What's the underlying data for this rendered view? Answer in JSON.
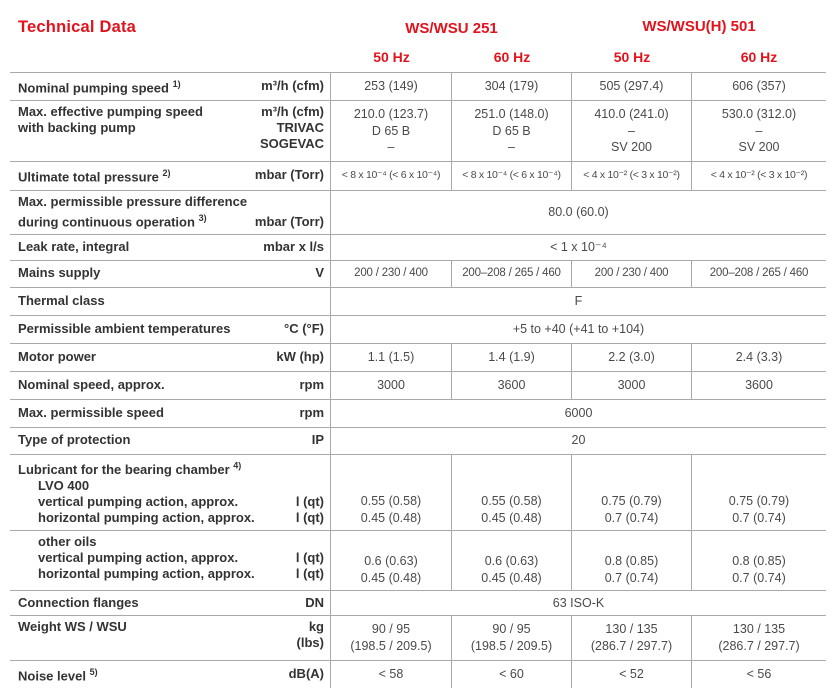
{
  "title": "Technical Data",
  "colors": {
    "accent_red": "#e2131c",
    "grid_line": "#a9a9a9",
    "label_text": "#333333",
    "value_text": "#4a4a4a"
  },
  "columns": {
    "groups": [
      "WS/WSU 251",
      "WS/WSU(H) 501"
    ],
    "subheaders": [
      "50 Hz",
      "60 Hz",
      "50 Hz",
      "60 Hz"
    ]
  },
  "rows": [
    {
      "label": "Nominal pumping speed",
      "sup": "1)",
      "unit": "m³/h (cfm)",
      "values": [
        "253 (149)",
        "304 (179)",
        "505 (297.4)",
        "606 (357)"
      ]
    },
    {
      "label_lines": [
        "Max. effective pumping speed",
        "with backing pump"
      ],
      "unit_lines": [
        "m³/h (cfm)",
        "TRIVAC",
        "SOGEVAC"
      ],
      "values": [
        [
          "210.0 (123.7)",
          "D 65 B",
          "–"
        ],
        [
          "251.0 (148.0)",
          "D 65 B",
          "–"
        ],
        [
          "410.0 (241.0)",
          "–",
          "SV 200"
        ],
        [
          "530.0 (312.0)",
          "–",
          "SV 200"
        ]
      ]
    },
    {
      "label": "Ultimate total pressure",
      "sup": "2)",
      "unit": "mbar (Torr)",
      "values": [
        "< 8 x 10⁻⁴ (< 6 x 10⁻⁴)",
        "< 8 x 10⁻⁴ (< 6 x 10⁻⁴)",
        "< 4 x 10⁻² (< 3 x 10⁻²)",
        "< 4 x 10⁻² (< 3 x 10⁻²)"
      ]
    },
    {
      "label_lines": [
        "Max. permissible pressure difference",
        "during continuous operation"
      ],
      "sup": "3)",
      "unit": "mbar (Torr)",
      "span": "80.0 (60.0)"
    },
    {
      "label": "Leak rate, integral",
      "unit": "mbar x l/s",
      "span": "< 1 x 10⁻⁴"
    },
    {
      "label": "Mains supply",
      "unit": "V",
      "values": [
        "200 / 230 / 400",
        "200–208 / 265 / 460",
        "200 / 230 / 400",
        "200–208 / 265 / 460"
      ]
    },
    {
      "label": "Thermal class",
      "unit": "",
      "span": "F"
    },
    {
      "label": "Permissible ambient temperatures",
      "unit": "°C (°F)",
      "span": "+5 to +40 (+41 to +104)"
    },
    {
      "label": "Motor power",
      "unit": "kW (hp)",
      "values": [
        "1.1 (1.5)",
        "1.4 (1.9)",
        "2.2 (3.0)",
        "2.4 (3.3)"
      ]
    },
    {
      "label": "Nominal speed, approx.",
      "unit": "rpm",
      "values": [
        "3000",
        "3600",
        "3000",
        "3600"
      ]
    },
    {
      "label": "Max. permissible speed",
      "unit": "rpm",
      "span": "6000"
    },
    {
      "label": "Type of protection",
      "unit": "IP",
      "span": "20"
    },
    {
      "heading": "Lubricant for the bearing chamber",
      "sup": "4)",
      "sub": "LVO 400",
      "line1": "vertical pumping action, approx.",
      "line2": "horizontal pumping action, approx.",
      "unit": "l (qt)",
      "values": [
        [
          "0.55 (0.58)",
          "0.45 (0.48)"
        ],
        [
          "0.55 (0.58)",
          "0.45 (0.48)"
        ],
        [
          "0.75 (0.79)",
          "0.7 (0.74)"
        ],
        [
          "0.75 (0.79)",
          "0.7 (0.74)"
        ]
      ]
    },
    {
      "sub": "other oils",
      "line1": "vertical pumping action, approx.",
      "line2": "horizontal pumping action, approx.",
      "unit": "l (qt)",
      "values": [
        [
          "0.6 (0.63)",
          "0.45 (0.48)"
        ],
        [
          "0.6 (0.63)",
          "0.45 (0.48)"
        ],
        [
          "0.8 (0.85)",
          "0.7 (0.74)"
        ],
        [
          "0.8 (0.85)",
          "0.7 (0.74)"
        ]
      ]
    },
    {
      "label": "Connection flanges",
      "unit": "DN",
      "span": "63 ISO-K"
    },
    {
      "label": "Weight WS / WSU",
      "unit_lines": [
        "kg",
        "(lbs)"
      ],
      "values": [
        [
          "90 / 95",
          "(198.5 / 209.5)"
        ],
        [
          "90 / 95",
          "(198.5 / 209.5)"
        ],
        [
          "130 / 135",
          "(286.7 / 297.7)"
        ],
        [
          "130 / 135",
          "(286.7 / 297.7)"
        ]
      ]
    },
    {
      "label": "Noise level",
      "sup": "5)",
      "unit": "dB(A)",
      "values": [
        "< 58",
        "< 60",
        "< 52",
        "< 56"
      ]
    }
  ]
}
